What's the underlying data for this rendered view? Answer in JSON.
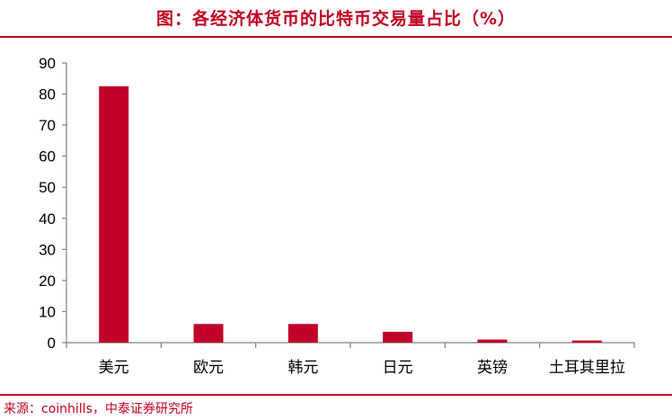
{
  "title": "图：各经济体货币的比特币交易量占比（%）",
  "source": "来源：coinhills，中泰证券研究所",
  "colors": {
    "accent": "#c00020",
    "bar": "#c0002a"
  },
  "chart_data": {
    "type": "bar",
    "categories": [
      "美元",
      "欧元",
      "韩元",
      "日元",
      "英镑",
      "土耳其里拉"
    ],
    "values": [
      82.5,
      6.0,
      6.0,
      3.5,
      1.0,
      0.7
    ],
    "yticks": [
      0,
      10,
      20,
      30,
      40,
      50,
      60,
      70,
      80,
      90
    ],
    "ylim": [
      0,
      90
    ],
    "grid": false,
    "legend": "none"
  }
}
